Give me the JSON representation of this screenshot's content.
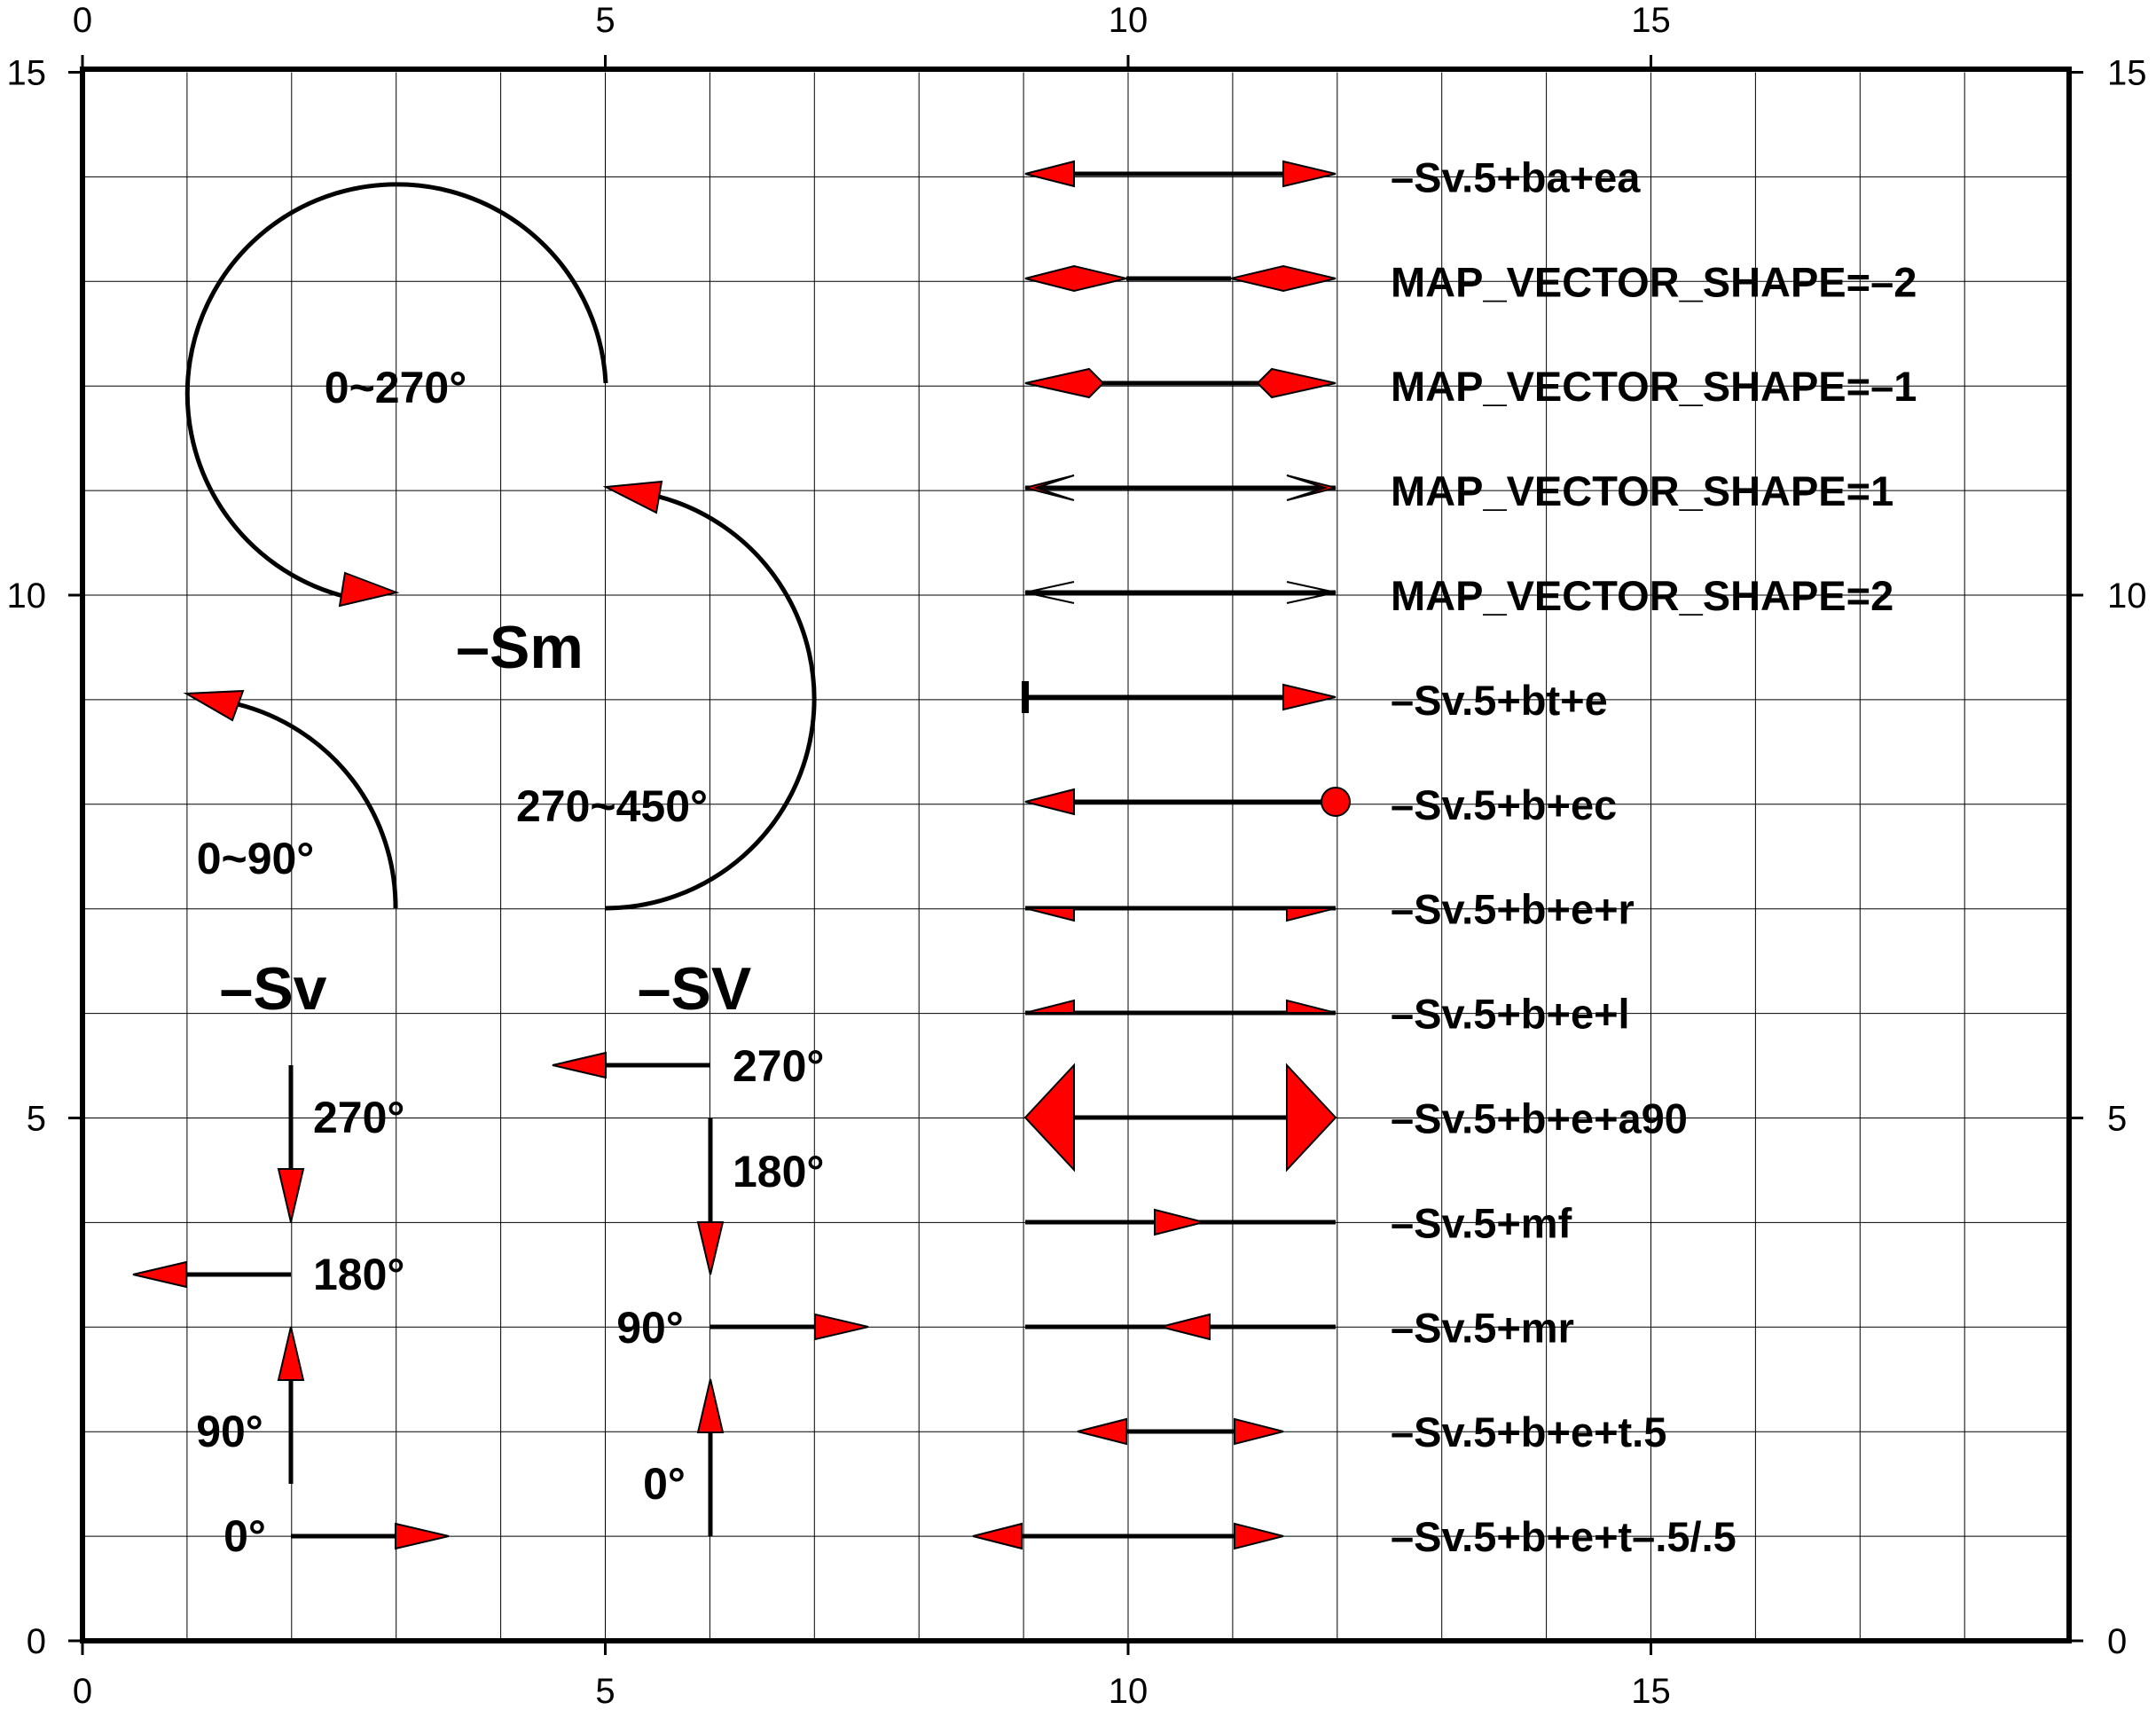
{
  "axes": {
    "x_range": [
      0,
      19
    ],
    "y_range": [
      0,
      15
    ],
    "major_ticks_x": [
      0,
      5,
      10,
      15
    ],
    "major_ticks_y": [
      0,
      5,
      10,
      15
    ],
    "grid_x": [
      1,
      2,
      3,
      4,
      5,
      6,
      7,
      8,
      9,
      10,
      11,
      12,
      13,
      14,
      15,
      16,
      17,
      18
    ],
    "grid_y": [
      1,
      2,
      3,
      4,
      5,
      6,
      7,
      8,
      9,
      10,
      11,
      12,
      13,
      14
    ],
    "tick_labels_x": [
      "0",
      "5",
      "10",
      "15"
    ],
    "tick_labels_y": [
      "0",
      "5",
      "10",
      "15"
    ]
  },
  "colors": {
    "arrowhead_fill": "#ff0000",
    "line": "#000000",
    "grid": "#000000",
    "background": "#ffffff"
  },
  "headings": {
    "sv": "–Sv",
    "sv_upper": "–SV",
    "sm": "–Sm"
  },
  "angle_labels": {
    "sv_0": "0°",
    "sv_90": "90°",
    "sv_180": "180°",
    "sv_270": "270°",
    "svu_0": "0°",
    "svu_90": "90°",
    "svu_180": "180°",
    "svu_270": "270°",
    "sm_0_90": "0~90°",
    "sm_0_270": "0~270°",
    "sm_270_450": "270~450°"
  },
  "vector_rows": [
    {
      "y": 14,
      "label": "–Sv.5+ba+ea"
    },
    {
      "y": 13,
      "label": "MAP_VECTOR_SHAPE=–2"
    },
    {
      "y": 12,
      "label": "MAP_VECTOR_SHAPE=–1"
    },
    {
      "y": 11,
      "label": "MAP_VECTOR_SHAPE=1"
    },
    {
      "y": 10,
      "label": "MAP_VECTOR_SHAPE=2"
    },
    {
      "y": 9,
      "label": "–Sv.5+bt+e"
    },
    {
      "y": 8,
      "label": "–Sv.5+b+ec"
    },
    {
      "y": 7,
      "label": "–Sv.5+b+e+r"
    },
    {
      "y": 6,
      "label": "–Sv.5+b+e+l"
    },
    {
      "y": 5,
      "label": "–Sv.5+b+e+a90"
    },
    {
      "y": 4,
      "label": "–Sv.5+mf"
    },
    {
      "y": 3,
      "label": "–Sv.5+mr"
    },
    {
      "y": 2,
      "label": "–Sv.5+b+e+t.5"
    },
    {
      "y": 1,
      "label": "–Sv.5+b+e+t–.5/.5"
    }
  ]
}
